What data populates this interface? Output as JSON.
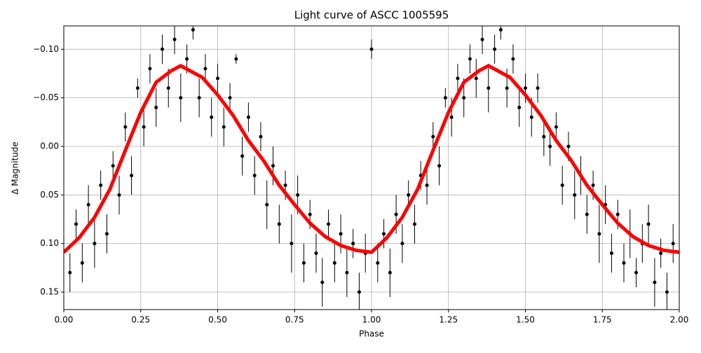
{
  "chart_data": {
    "type": "scatter",
    "title": "Light curve of ASCC 1005595",
    "x_label": "Phase",
    "y_label": "Δ Magnitude",
    "xlim": [
      0,
      2
    ],
    "ylim": [
      0.168,
      -0.124
    ],
    "xticks": [
      {
        "value": 0,
        "label": "0.00"
      },
      {
        "value": 0.25,
        "label": "0.25"
      },
      {
        "value": 0.5,
        "label": "0.50"
      },
      {
        "value": 0.75,
        "label": "0.75"
      },
      {
        "value": 1,
        "label": "1.00"
      },
      {
        "value": 1.25,
        "label": "1.25"
      },
      {
        "value": 1.5,
        "label": "1.50"
      },
      {
        "value": 1.75,
        "label": "1.75"
      },
      {
        "value": 2,
        "label": "2.00"
      }
    ],
    "yticks": [
      {
        "value": -0.1,
        "label": "−0.10"
      },
      {
        "value": -0.05,
        "label": "−0.05"
      },
      {
        "value": 0,
        "label": "0.00"
      },
      {
        "value": 0.05,
        "label": "0.05"
      },
      {
        "value": 0.1,
        "label": "0.10"
      },
      {
        "value": 0.15,
        "label": "0.15"
      }
    ],
    "grid": true,
    "series": [
      {
        "kind": "points",
        "color": "#000000",
        "x": [
          0.02,
          0.04,
          0.06,
          0.08,
          0.1,
          0.12,
          0.14,
          0.16,
          0.18,
          0.2,
          0.22,
          0.24,
          0.26,
          0.28,
          0.3,
          0.32,
          0.34,
          0.36,
          0.38,
          0.4,
          0.42,
          0.44,
          0.46,
          0.48,
          0.5,
          0.52,
          0.54,
          0.56,
          0.58,
          0.6,
          0.62,
          0.64,
          0.66,
          0.68,
          0.7,
          0.72,
          0.74,
          0.76,
          0.78,
          0.8,
          0.82,
          0.84,
          0.86,
          0.88,
          0.9,
          0.92,
          0.94,
          0.96,
          0.98,
          1.0,
          1.02,
          1.04,
          1.06,
          1.08,
          1.1,
          1.12,
          1.14,
          1.16,
          1.18,
          1.2,
          1.22,
          1.24,
          1.26,
          1.28,
          1.3,
          1.32,
          1.34,
          1.36,
          1.38,
          1.4,
          1.42,
          1.44,
          1.46,
          1.48,
          1.5,
          1.52,
          1.54,
          1.56,
          1.58,
          1.6,
          1.62,
          1.64,
          1.66,
          1.68,
          1.7,
          1.72,
          1.74,
          1.76,
          1.78,
          1.8,
          1.82,
          1.84,
          1.86,
          1.88,
          1.9,
          1.92,
          1.94,
          1.96,
          1.98
        ],
        "values": [
          0.13,
          0.08,
          0.12,
          0.06,
          0.1,
          0.04,
          0.09,
          0.02,
          0.05,
          -0.02,
          0.03,
          -0.06,
          -0.02,
          -0.08,
          -0.04,
          -0.1,
          -0.06,
          -0.11,
          -0.05,
          -0.09,
          -0.12,
          -0.05,
          -0.08,
          -0.03,
          -0.07,
          -0.02,
          -0.05,
          -0.09,
          0.01,
          -0.03,
          0.03,
          -0.01,
          0.06,
          0.02,
          0.08,
          0.04,
          0.1,
          0.05,
          0.12,
          0.07,
          0.11,
          0.14,
          0.08,
          0.12,
          0.09,
          0.13,
          0.1,
          0.15,
          0.11,
          -0.1,
          0.12,
          0.09,
          0.13,
          0.07,
          0.1,
          0.05,
          0.08,
          0.03,
          0.04,
          -0.01,
          0.02,
          -0.05,
          -0.03,
          -0.07,
          -0.05,
          -0.09,
          -0.07,
          -0.11,
          -0.06,
          -0.1,
          -0.12,
          -0.06,
          -0.09,
          -0.04,
          -0.06,
          -0.03,
          -0.06,
          -0.01,
          0.0,
          -0.02,
          0.04,
          0.0,
          0.05,
          0.03,
          0.07,
          0.04,
          0.09,
          0.06,
          0.11,
          0.07,
          0.12,
          0.09,
          0.13,
          0.1,
          0.08,
          0.14,
          0.11,
          0.15,
          0.1
        ],
        "errors": [
          0.02,
          0.015,
          0.02,
          0.02,
          0.025,
          0.015,
          0.02,
          0.015,
          0.02,
          0.015,
          0.02,
          0.01,
          0.02,
          0.015,
          0.02,
          0.015,
          0.02,
          0.015,
          0.025,
          0.015,
          0.01,
          0.02,
          0.015,
          0.02,
          0.015,
          0.02,
          0.015,
          0.005,
          0.02,
          0.015,
          0.02,
          0.015,
          0.025,
          0.02,
          0.02,
          0.015,
          0.03,
          0.02,
          0.02,
          0.015,
          0.02,
          0.025,
          0.015,
          0.02,
          0.02,
          0.025,
          0.015,
          0.02,
          0.02,
          0.01,
          0.02,
          0.015,
          0.025,
          0.02,
          0.02,
          0.015,
          0.02,
          0.015,
          0.02,
          0.015,
          0.02,
          0.01,
          0.02,
          0.015,
          0.02,
          0.015,
          0.02,
          0.015,
          0.025,
          0.015,
          0.01,
          0.02,
          0.015,
          0.02,
          0.015,
          0.02,
          0.015,
          0.02,
          0.02,
          0.015,
          0.02,
          0.015,
          0.025,
          0.02,
          0.02,
          0.015,
          0.03,
          0.02,
          0.02,
          0.015,
          0.02,
          0.025,
          0.015,
          0.02,
          0.02,
          0.025,
          0.015,
          0.02,
          0.02
        ]
      },
      {
        "kind": "line",
        "color": "#ff0000",
        "x": [
          0,
          0.05,
          0.1,
          0.15,
          0.2,
          0.25,
          0.3,
          0.35,
          0.38,
          0.45,
          0.5,
          0.55,
          0.6,
          0.65,
          0.7,
          0.75,
          0.8,
          0.85,
          0.9,
          0.95,
          1,
          1.05,
          1.1,
          1.15,
          1.2,
          1.25,
          1.3,
          1.35,
          1.38,
          1.45,
          1.5,
          1.55,
          1.6,
          1.65,
          1.7,
          1.75,
          1.8,
          1.85,
          1.9,
          1.95,
          2
        ],
        "values": [
          0.109,
          0.094,
          0.073,
          0.044,
          0.004,
          -0.035,
          -0.066,
          -0.078,
          -0.083,
          -0.071,
          -0.053,
          -0.032,
          -0.006,
          0.015,
          0.04,
          0.06,
          0.079,
          0.093,
          0.102,
          0.107,
          0.109,
          0.094,
          0.073,
          0.044,
          0.004,
          -0.035,
          -0.066,
          -0.078,
          -0.083,
          -0.071,
          -0.053,
          -0.032,
          -0.006,
          0.015,
          0.04,
          0.06,
          0.079,
          0.093,
          0.102,
          0.107,
          0.109
        ]
      }
    ]
  }
}
